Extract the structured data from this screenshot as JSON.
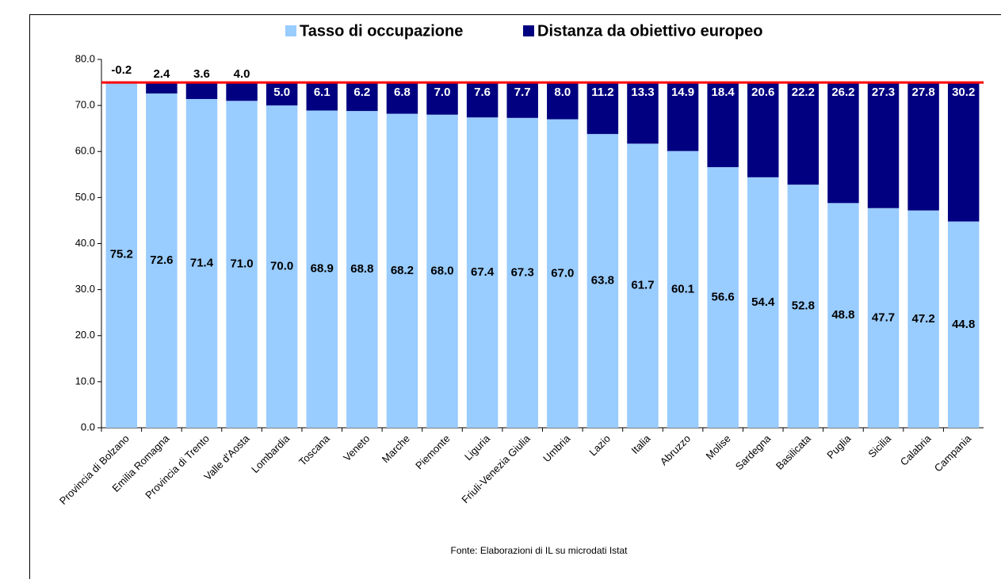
{
  "chart_data": {
    "type": "stacked_bar",
    "categories": [
      "Provincia di Bolzano",
      "Emilia Romagna",
      "Provincia di Trento",
      "Valle d'Aosta",
      "Lombardia",
      "Toscana",
      "Veneto",
      "Marche",
      "Piemonte",
      "Liguria",
      "Friuli-Venezia Giulia",
      "Umbria",
      "Lazio",
      "Italia",
      "Abruzzo",
      "Molise",
      "Sardegna",
      "Basilicata",
      "Puglia",
      "Sicilia",
      "Calabria",
      "Campania"
    ],
    "series": [
      {
        "name": "Tasso di occupazione",
        "color": "#99ccff",
        "values": [
          75.2,
          72.6,
          71.4,
          71.0,
          70.0,
          68.9,
          68.8,
          68.2,
          68.0,
          67.4,
          67.3,
          67.0,
          63.8,
          61.7,
          60.1,
          56.6,
          54.4,
          52.8,
          48.8,
          47.7,
          47.2,
          44.8
        ],
        "value_labels": [
          "75.2",
          "72.6",
          "71.4",
          "71.0",
          "70.0",
          "68.9",
          "68.8",
          "68.2",
          "68.0",
          "67.4",
          "67.3",
          "67.0",
          "63.8",
          "61.7",
          "60.1",
          "56.6",
          "54.4",
          "52.8",
          "48.8",
          "47.7",
          "47.2",
          "44.8"
        ]
      },
      {
        "name": "Distanza da obiettivo europeo",
        "color": "#000080",
        "values": [
          -0.2,
          2.4,
          3.6,
          4.0,
          5.0,
          6.1,
          6.2,
          6.8,
          7.0,
          7.6,
          7.7,
          8.0,
          11.2,
          13.3,
          14.9,
          18.4,
          20.6,
          22.2,
          26.2,
          27.3,
          27.8,
          30.2
        ],
        "value_labels": [
          "-0.2",
          "2.4",
          "3.6",
          "4.0",
          "5.0",
          "6.1",
          "6.2",
          "6.8",
          "7.0",
          "7.6",
          "7.7",
          "8.0",
          "11.2",
          "13.3",
          "14.9",
          "18.4",
          "20.6",
          "22.2",
          "26.2",
          "27.3",
          "27.8",
          "30.2"
        ]
      }
    ],
    "ylim": [
      0,
      80
    ],
    "yticks": [
      {
        "value": 0,
        "label": "0.0"
      },
      {
        "value": 10,
        "label": "10.0"
      },
      {
        "value": 20,
        "label": "20.0"
      },
      {
        "value": 30,
        "label": "30.0"
      },
      {
        "value": 40,
        "label": "40.0"
      },
      {
        "value": 50,
        "label": "50.0"
      },
      {
        "value": 60,
        "label": "60.0"
      },
      {
        "value": 70,
        "label": "70.0"
      },
      {
        "value": 80,
        "label": "80.0"
      }
    ],
    "reference_line": {
      "value": 75,
      "color": "#ff0000"
    },
    "source": "Fonte: Elaborazioni di IL su microdati Istat",
    "legend": "top"
  }
}
